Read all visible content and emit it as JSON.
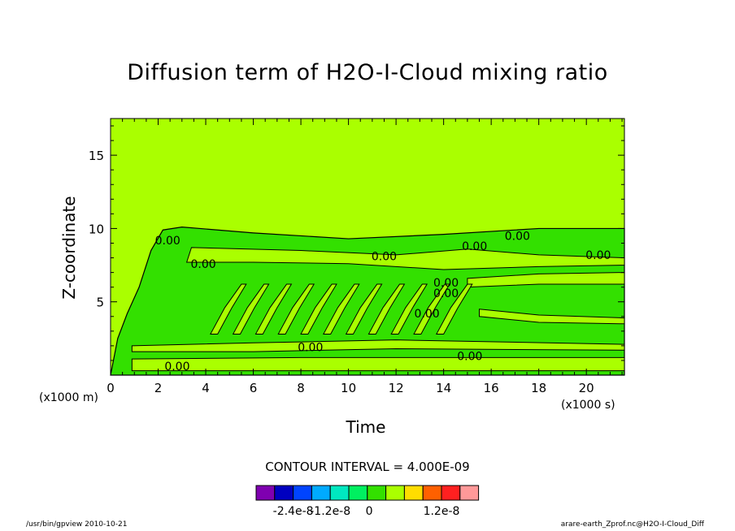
{
  "chart_data": {
    "type": "contour",
    "title": "Diffusion term of H2O-I-Cloud mixing ratio",
    "xlabel": "Time",
    "ylabel": "Z-coordinate",
    "x_unit_label": "(x1000 s)",
    "y_unit_label": "(x1000 m)",
    "xlim": [
      0,
      21.6
    ],
    "ylim": [
      0,
      17.5
    ],
    "x_ticks": [
      0,
      2,
      4,
      6,
      8,
      10,
      12,
      14,
      16,
      18,
      20
    ],
    "y_ticks": [
      5,
      10,
      15
    ],
    "x_tick_labels": [
      "0",
      "2",
      "4",
      "6",
      "8",
      "10",
      "12",
      "14",
      "16",
      "18",
      "20"
    ],
    "y_tick_labels": [
      "5",
      "10",
      "15"
    ],
    "contour_interval_text": "CONTOUR INTERVAL = 4.000E-09",
    "contour_labels": [
      {
        "text": "0.00",
        "x": 2.4,
        "y": 9.2
      },
      {
        "text": "0.00",
        "x": 3.9,
        "y": 7.6
      },
      {
        "text": "0.00",
        "x": 11.5,
        "y": 8.1
      },
      {
        "text": "0.00",
        "x": 15.3,
        "y": 8.8
      },
      {
        "text": "0.00",
        "x": 17.1,
        "y": 9.5
      },
      {
        "text": "0.00",
        "x": 20.5,
        "y": 8.2
      },
      {
        "text": "0.00",
        "x": 14.1,
        "y": 6.3
      },
      {
        "text": "0.00",
        "x": 14.1,
        "y": 5.6
      },
      {
        "text": "0.00",
        "x": 13.3,
        "y": 4.2
      },
      {
        "text": "0.00",
        "x": 8.4,
        "y": 1.9
      },
      {
        "text": "0.00",
        "x": 15.1,
        "y": 1.3
      },
      {
        "text": "0.00",
        "x": 2.8,
        "y": 0.6
      }
    ],
    "colorbar": {
      "colors": [
        "#7f00b0",
        "#0000c0",
        "#0044ff",
        "#00aaff",
        "#00e8c0",
        "#00f060",
        "#33e000",
        "#aaff00",
        "#ffdd00",
        "#ff6000",
        "#ff2020",
        "#ff9999"
      ],
      "tick_labels": [
        "-2.4e-8",
        "-1.2e-8",
        "0",
        "1.2e-8"
      ]
    },
    "grid": false
  },
  "footer": {
    "left": "/usr/bin/gpview  2010-10-21",
    "right": "arare-earth_Zprof.nc@H2O-I-Cloud_Diff"
  }
}
